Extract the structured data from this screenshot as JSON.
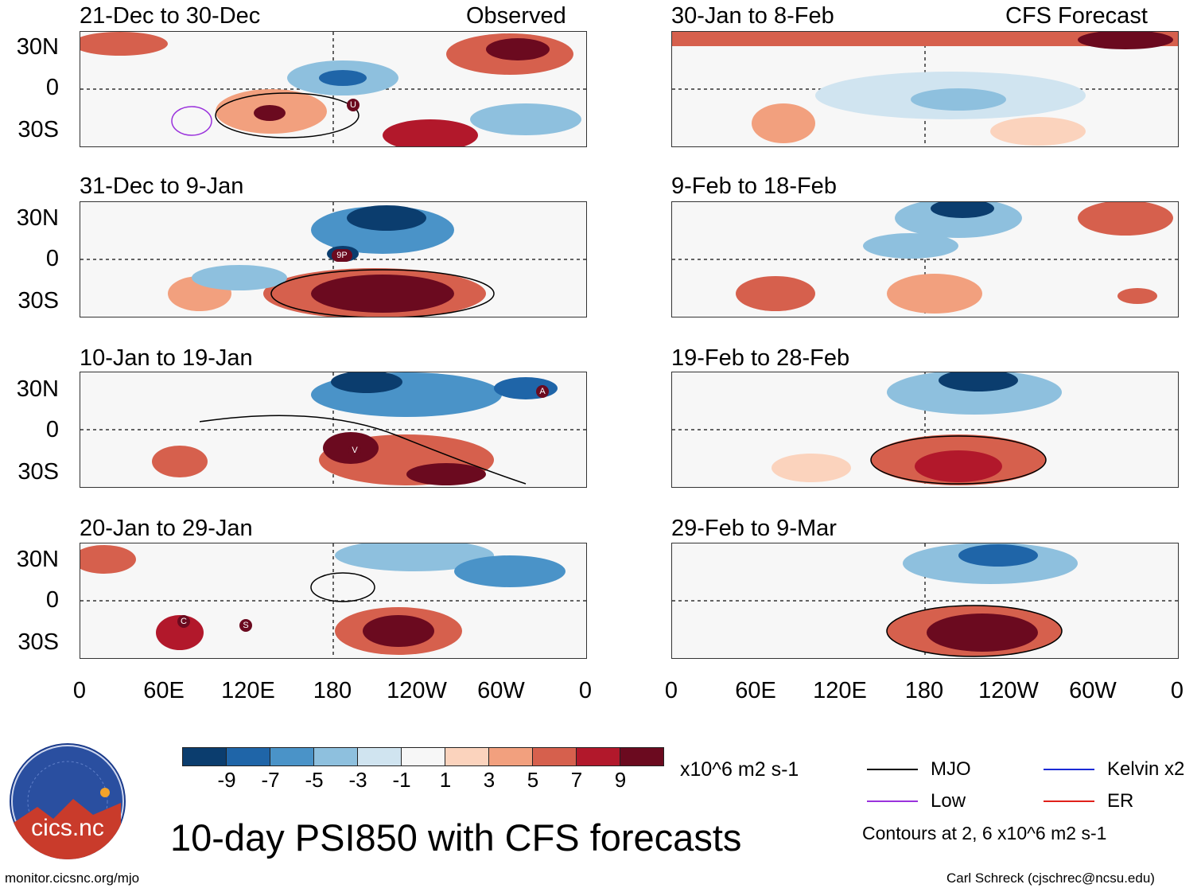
{
  "header": {
    "left_label": "Observed",
    "right_label": "CFS Forecast"
  },
  "panels": [
    {
      "period": "21-Dec to 30-Dec",
      "column": "observed"
    },
    {
      "period": "31-Dec to 9-Jan",
      "column": "observed"
    },
    {
      "period": "10-Jan to 19-Jan",
      "column": "observed"
    },
    {
      "period": "20-Jan to 29-Jan",
      "column": "observed"
    },
    {
      "period": "30-Jan to 8-Feb",
      "column": "forecast"
    },
    {
      "period": "9-Feb to 18-Feb",
      "column": "forecast"
    },
    {
      "period": "19-Feb to 28-Feb",
      "column": "forecast"
    },
    {
      "period": "29-Feb to 9-Mar",
      "column": "forecast"
    }
  ],
  "latitude_labels": [
    "30N",
    "0",
    "30S"
  ],
  "longitude_labels": [
    "0",
    "60E",
    "120E",
    "180",
    "120W",
    "60W",
    "0"
  ],
  "storm_markers": [
    "U",
    "9P",
    "V",
    "A",
    "C",
    "S"
  ],
  "colorbar": {
    "ticks": [
      "-9",
      "-7",
      "-5",
      "-3",
      "-1",
      "1",
      "3",
      "5",
      "7",
      "9"
    ],
    "units": "x10^6 m2 s-1",
    "colors": [
      "#0b3d6e",
      "#1f65a8",
      "#4a93c8",
      "#8ec0de",
      "#d0e4f0",
      "#f7f7f7",
      "#fbd3bd",
      "#f2a07e",
      "#d6604d",
      "#b2182b",
      "#6b0a1f"
    ]
  },
  "legend": {
    "items": [
      {
        "label": "MJO",
        "color": "#000000"
      },
      {
        "label": "Kelvin x2",
        "color": "#1a2bd6"
      },
      {
        "label": "Low",
        "color": "#9a32dc"
      },
      {
        "label": "ER",
        "color": "#e0201a"
      }
    ],
    "contour_note": "Contours at 2, 6 x10^6 m2 s-1"
  },
  "logo_text": "cics.nc",
  "main_title": "10-day PSI850 with CFS forecasts",
  "footer": {
    "left": "monitor.cicsnc.org/mjo",
    "right": "Carl Schreck (cjschrec@ncsu.edu)"
  }
}
